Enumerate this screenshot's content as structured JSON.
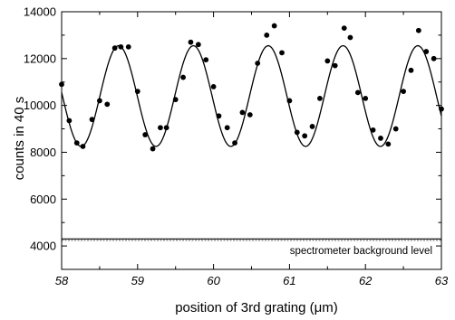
{
  "chart_data": {
    "type": "scatter",
    "title": "",
    "xlabel": "position of 3rd grating (μm)",
    "ylabel": "counts in 40 s",
    "xlim": [
      58,
      63
    ],
    "ylim": [
      3000,
      14000
    ],
    "xticks": [
      58,
      59,
      60,
      61,
      62,
      63
    ],
    "yticks": [
      4000,
      6000,
      8000,
      10000,
      12000,
      14000
    ],
    "grid": false,
    "series": [
      {
        "kind": "points",
        "x": [
          58.0,
          58.1,
          58.2,
          58.28,
          58.4,
          58.5,
          58.6,
          58.7,
          58.78,
          58.88,
          59.0,
          59.1,
          59.2,
          59.3,
          59.38,
          59.5,
          59.6,
          59.7,
          59.8,
          59.9,
          60.0,
          60.07,
          60.18,
          60.28,
          60.38,
          60.48,
          60.58,
          60.7,
          60.8,
          60.9,
          61.0,
          61.1,
          61.2,
          61.3,
          61.4,
          61.5,
          61.6,
          61.72,
          61.8,
          61.9,
          62.0,
          62.1,
          62.2,
          62.3,
          62.4,
          62.5,
          62.6,
          62.7,
          62.8,
          62.9,
          63.0
        ],
        "y": [
          10900,
          9350,
          8400,
          8250,
          9400,
          10200,
          10050,
          12450,
          12500,
          12500,
          10600,
          8750,
          8150,
          9050,
          9050,
          10250,
          11200,
          12700,
          12600,
          11950,
          10800,
          9550,
          9050,
          8400,
          9700,
          9600,
          11800,
          13000,
          13400,
          12250,
          10200,
          8850,
          8700,
          9100,
          10300,
          11900,
          11700,
          13300,
          12900,
          10550,
          10300,
          8950,
          8600,
          8350,
          9000,
          10600,
          11500,
          13200,
          12300,
          12000,
          9850
        ]
      },
      {
        "kind": "fit",
        "model": "y = 10400 + 2150*cos(2*pi*(x - 58.75)/0.985)"
      },
      {
        "kind": "baseline",
        "y": 4300
      }
    ],
    "annotations": [
      "spectrometer background level"
    ]
  }
}
